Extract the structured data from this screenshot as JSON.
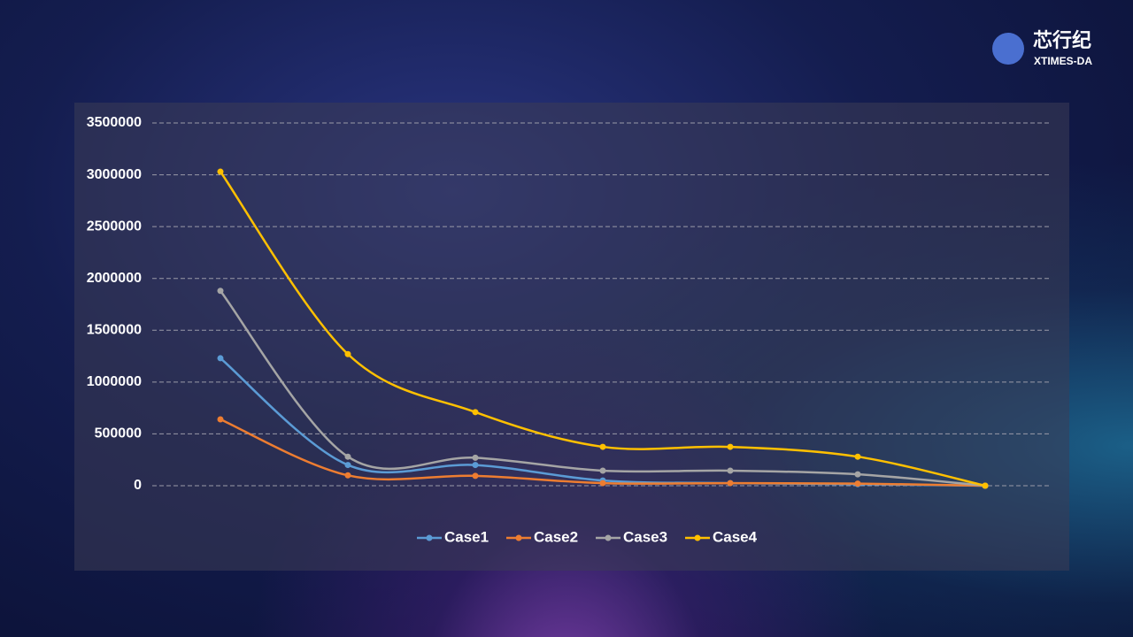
{
  "chart_data": {
    "type": "line",
    "categories": [
      null,
      null,
      null,
      null,
      null,
      null,
      null
    ],
    "series": [
      {
        "name": "Case1",
        "color": "#5b9bd5",
        "values": [
          1230000,
          200000,
          200000,
          50000,
          25000,
          15000,
          0
        ]
      },
      {
        "name": "Case2",
        "color": "#ed7d31",
        "values": [
          640000,
          100000,
          95000,
          25000,
          25000,
          20000,
          0
        ]
      },
      {
        "name": "Case3",
        "color": "#a5a5a5",
        "values": [
          1880000,
          280000,
          270000,
          145000,
          145000,
          110000,
          0
        ]
      },
      {
        "name": "Case4",
        "color": "#ffc000",
        "values": [
          3030000,
          1270000,
          710000,
          375000,
          375000,
          280000,
          0
        ]
      }
    ],
    "ylim": [
      0,
      3500000
    ],
    "yticks": [
      0,
      500000,
      1000000,
      1500000,
      2000000,
      2500000,
      3000000,
      3500000
    ],
    "grid": true,
    "smooth": true,
    "legend": "bottom"
  },
  "logo": {
    "name": "芯行纪",
    "subtitle": "XTIMES-DA"
  }
}
